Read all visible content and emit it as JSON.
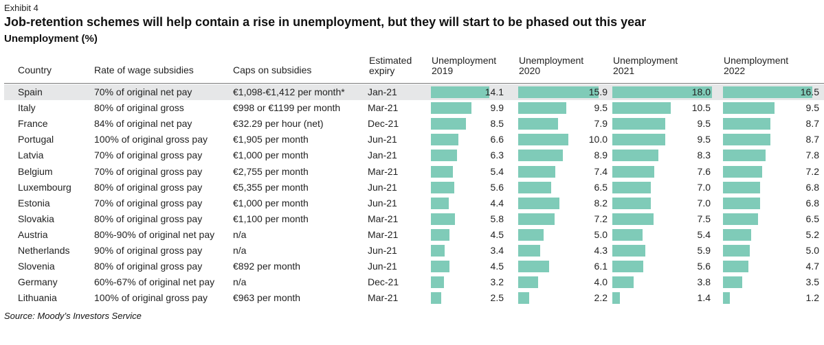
{
  "exhibit_label": "Exhibit 4",
  "title": "Job-retention schemes will help contain a rise in unemployment, but they will start to be phased out this year",
  "subtitle": "Unemployment (%)",
  "source": "Source: Moody’s Investors Service",
  "colors": {
    "bar": "#7fcbb8",
    "row_shade": "#e6e7e8"
  },
  "headers": {
    "country": "Country",
    "rate": "Rate of wage subsidies",
    "caps": "Caps on subsidies",
    "expiry_line1": "Estimated",
    "expiry_line2": "expiry",
    "u2019_line1": "Unemployment",
    "u2019_line2": "2019",
    "u2020_line1": "Unemployment",
    "u2020_line2": "2020",
    "u2021_line1": "Unemployment",
    "u2021_line2": "2021",
    "u2022_line1": "Unemployment",
    "u2022_line2": "2022"
  },
  "chart_data": {
    "type": "bar",
    "title": "Job-retention schemes will help contain a rise in unemployment, but they will start to be phased out this year",
    "subtitle": "Unemployment (%)",
    "columns": [
      "Unemployment 2019",
      "Unemployment 2020",
      "Unemployment 2021",
      "Unemployment 2022"
    ],
    "rows": [
      {
        "country": "Spain",
        "rate": "70% of original net pay",
        "cap": "€1,098-€1,412 per month*",
        "expiry": "Jan-21",
        "values": [
          14.1,
          15.9,
          18.0,
          16.5
        ]
      },
      {
        "country": "Italy",
        "rate": "80% of original gross",
        "cap": "€998 or €1199 per month",
        "expiry": "Mar-21",
        "values": [
          9.9,
          9.5,
          10.5,
          9.5
        ]
      },
      {
        "country": "France",
        "rate": "84% of original net pay",
        "cap": "€32.29 per hour (net)",
        "expiry": "Dec-21",
        "values": [
          8.5,
          7.9,
          9.5,
          8.7
        ]
      },
      {
        "country": "Portugal",
        "rate": "100% of original gross pay",
        "cap": "€1,905 per month",
        "expiry": "Jun-21",
        "values": [
          6.6,
          10.0,
          9.5,
          8.7
        ]
      },
      {
        "country": "Latvia",
        "rate": "70% of original gross pay",
        "cap": "€1,000 per month",
        "expiry": "Jan-21",
        "values": [
          6.3,
          8.9,
          8.3,
          7.8
        ]
      },
      {
        "country": "Belgium",
        "rate": "70% of original gross pay",
        "cap": "€2,755 per month",
        "expiry": "Mar-21",
        "values": [
          5.4,
          7.4,
          7.6,
          7.2
        ]
      },
      {
        "country": "Luxembourg",
        "rate": "80% of original gross pay",
        "cap": "€5,355 per month",
        "expiry": "Jun-21",
        "values": [
          5.6,
          6.5,
          7.0,
          6.8
        ]
      },
      {
        "country": "Estonia",
        "rate": "70% of original gross pay",
        "cap": "€1,000 per month",
        "expiry": "Jun-21",
        "values": [
          4.4,
          8.2,
          7.0,
          6.8
        ]
      },
      {
        "country": "Slovakia",
        "rate": "80% of original gross pay",
        "cap": "€1,100 per month",
        "expiry": "Mar-21",
        "values": [
          5.8,
          7.2,
          7.5,
          6.5
        ]
      },
      {
        "country": "Austria",
        "rate": "80%-90% of original net pay",
        "cap": "n/a",
        "expiry": "Mar-21",
        "values": [
          4.5,
          5.0,
          5.4,
          5.2
        ]
      },
      {
        "country": "Netherlands",
        "rate": "90% of original gross pay",
        "cap": "n/a",
        "expiry": "Jun-21",
        "values": [
          3.4,
          4.3,
          5.9,
          5.0
        ]
      },
      {
        "country": "Slovenia",
        "rate": "80% of original gross pay",
        "cap": "€892 per month",
        "expiry": "Jun-21",
        "values": [
          4.5,
          6.1,
          5.6,
          4.7
        ]
      },
      {
        "country": "Germany",
        "rate": "60%-67% of original net pay",
        "cap": "n/a",
        "expiry": "Dec-21",
        "values": [
          3.2,
          4.0,
          3.8,
          3.5
        ]
      },
      {
        "country": "Lithuania",
        "rate": "100% of original gross pay",
        "cap": "€963 per month",
        "expiry": "Mar-21",
        "values": [
          2.5,
          2.2,
          1.4,
          1.2
        ]
      }
    ]
  }
}
